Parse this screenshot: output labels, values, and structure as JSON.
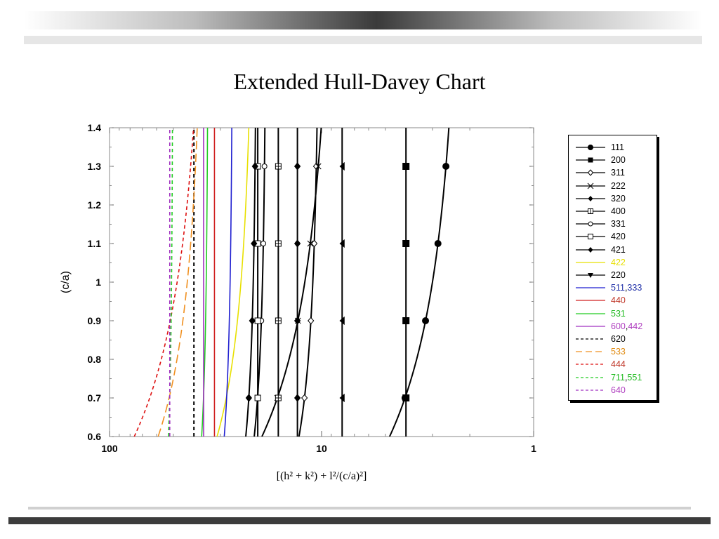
{
  "slide": {
    "title": "Extended Hull-Davey Chart"
  },
  "chart_data": {
    "type": "line",
    "title": "",
    "xlabel": "[(h² + k²) + l²/(c/a)²]",
    "ylabel": "(c/a)",
    "x_scale": "log",
    "x_reversed": true,
    "xlim": [
      100,
      1
    ],
    "ylim": [
      0.6,
      1.4
    ],
    "x_ticks": [
      "100",
      "10",
      "1"
    ],
    "y_ticks": [
      "0.6",
      "0.7",
      "0.8",
      "0.9",
      "1",
      "1.1",
      "1.2",
      "1.3",
      "1.4"
    ],
    "legend_position": "right",
    "series": [
      {
        "name": "111",
        "label_parts": [
          {
            "text": "111",
            "color": "#000000"
          }
        ],
        "hk": 2,
        "l2": 1,
        "color": "#000000",
        "dash": "solid",
        "marker": "circle",
        "marker_y": [
          0.7,
          0.9,
          1.1,
          1.3
        ]
      },
      {
        "name": "200",
        "label_parts": [
          {
            "text": "200",
            "color": "#000000"
          }
        ],
        "hk": 4,
        "l2": 0,
        "color": "#000000",
        "dash": "solid",
        "marker": "square",
        "marker_y": [
          0.7,
          0.9,
          1.1,
          1.3
        ]
      },
      {
        "name": "311",
        "label_parts": [
          {
            "text": "311",
            "color": "#000000"
          }
        ],
        "hk": 10,
        "l2": 1,
        "color": "#000000",
        "dash": "solid",
        "marker": "open-diamond",
        "marker_y": [
          0.7,
          0.9,
          1.1,
          1.3
        ]
      },
      {
        "name": "222",
        "label_parts": [
          {
            "text": "222",
            "color": "#000000"
          }
        ],
        "hk": 8,
        "l2": 4,
        "color": "#000000",
        "dash": "solid",
        "marker": "x",
        "marker_y": [
          0.7,
          0.9,
          1.1,
          1.3
        ]
      },
      {
        "name": "320",
        "label_parts": [
          {
            "text": "320",
            "color": "#000000"
          }
        ],
        "hk": 13,
        "l2": 0,
        "color": "#000000",
        "dash": "solid",
        "marker": "diamond",
        "marker_y": [
          0.7,
          0.9,
          1.1,
          1.3
        ]
      },
      {
        "name": "400",
        "label_parts": [
          {
            "text": "400",
            "color": "#000000"
          }
        ],
        "hk": 16,
        "l2": 0,
        "color": "#000000",
        "dash": "solid",
        "marker": "grid-square",
        "marker_y": [
          0.7,
          0.9,
          1.1,
          1.3
        ]
      },
      {
        "name": "331",
        "label_parts": [
          {
            "text": "331",
            "color": "#000000"
          }
        ],
        "hk": 18,
        "l2": 1,
        "color": "#000000",
        "dash": "solid",
        "marker": "open-circle",
        "marker_y": [
          0.7,
          0.9,
          1.1,
          1.3
        ]
      },
      {
        "name": "420",
        "label_parts": [
          {
            "text": "420",
            "color": "#000000"
          }
        ],
        "hk": 20,
        "l2": 0,
        "color": "#000000",
        "dash": "solid",
        "marker": "open-square",
        "marker_y": [
          0.7,
          0.9,
          1.1,
          1.3
        ]
      },
      {
        "name": "421",
        "label_parts": [
          {
            "text": "421",
            "color": "#000000"
          }
        ],
        "hk": 20,
        "l2": 1,
        "color": "#000000",
        "dash": "solid",
        "marker": "diamond",
        "marker_y": [
          0.7,
          0.9,
          1.1,
          1.3
        ]
      },
      {
        "name": "422",
        "label_parts": [
          {
            "text": "422",
            "color": "#e8e000"
          }
        ],
        "hk": 20,
        "l2": 4,
        "color": "#e8e000",
        "dash": "solid",
        "marker": "none",
        "marker_y": []
      },
      {
        "name": "220",
        "label_parts": [
          {
            "text": "220",
            "color": "#000000"
          }
        ],
        "hk": 8,
        "l2": 0,
        "color": "#000000",
        "dash": "solid",
        "marker": "triangle",
        "marker_y": [
          0.7,
          0.9,
          1.1,
          1.3
        ]
      },
      {
        "name": "511,333",
        "label_parts": [
          {
            "text": "511",
            "color": "#1f2fa8"
          },
          {
            "text": ",",
            "color": "#000000"
          },
          {
            "text": "333",
            "color": "#1f2fa8"
          }
        ],
        "hk": 26,
        "l2": 1,
        "color": "#1f1fd0",
        "dash": "solid",
        "marker": "none",
        "marker_y": []
      },
      {
        "name": "440",
        "label_parts": [
          {
            "text": "440",
            "color": "#c0392b"
          }
        ],
        "hk": 32,
        "l2": 0,
        "color": "#d02020",
        "dash": "solid",
        "marker": "none",
        "marker_y": []
      },
      {
        "name": "531",
        "label_parts": [
          {
            "text": "531",
            "color": "#22bb22"
          }
        ],
        "hk": 34,
        "l2": 1,
        "color": "#22cc22",
        "dash": "solid",
        "marker": "none",
        "marker_y": []
      },
      {
        "name": "600,442",
        "label_parts": [
          {
            "text": "600",
            "color": "#b040c0"
          },
          {
            "text": ",",
            "color": "#000000"
          },
          {
            "text": "442",
            "color": "#b040c0"
          }
        ],
        "hk": 36,
        "l2": 0,
        "color": "#a030c0",
        "dash": "solid",
        "marker": "none",
        "marker_y": []
      },
      {
        "name": "620",
        "label_parts": [
          {
            "text": "620",
            "color": "#000000"
          }
        ],
        "hk": 40,
        "l2": 0,
        "color": "#000000",
        "dash": "dashed",
        "marker": "none",
        "marker_y": []
      },
      {
        "name": "533",
        "label_parts": [
          {
            "text": "533",
            "color": "#e08a10"
          }
        ],
        "hk": 34,
        "l2": 9,
        "color": "#f09020",
        "dash": "long-dashed",
        "marker": "none",
        "marker_y": []
      },
      {
        "name": "444",
        "label_parts": [
          {
            "text": "444",
            "color": "#c0392b"
          }
        ],
        "hk": 32,
        "l2": 16,
        "color": "#dd1111",
        "dash": "dashed",
        "marker": "none",
        "marker_y": []
      },
      {
        "name": "711,551",
        "label_parts": [
          {
            "text": "711",
            "color": "#22bb22"
          },
          {
            "text": ",",
            "color": "#000000"
          },
          {
            "text": "551",
            "color": "#22bb22"
          }
        ],
        "hk": 50,
        "l2": 1,
        "color": "#22cc22",
        "dash": "dashed",
        "marker": "none",
        "marker_y": []
      },
      {
        "name": "640",
        "label_parts": [
          {
            "text": "640",
            "color": "#b040c0"
          }
        ],
        "hk": 52,
        "l2": 0,
        "color": "#a030c0",
        "dash": "dashed",
        "marker": "none",
        "marker_y": []
      }
    ]
  }
}
